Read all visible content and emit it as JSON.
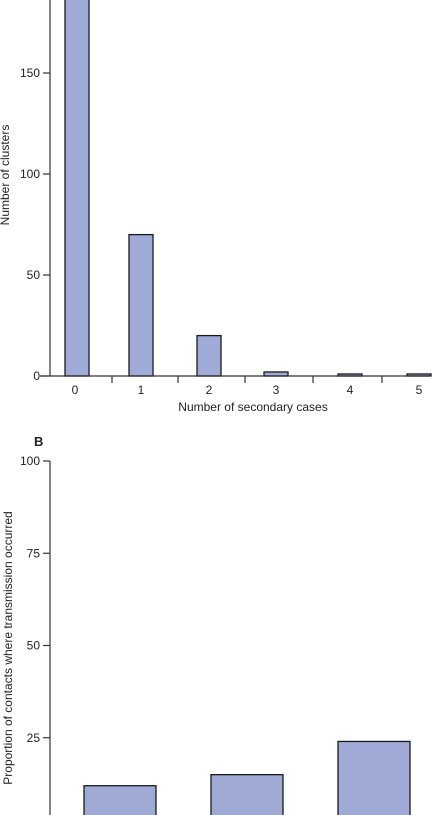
{
  "colors": {
    "bar_fill": "#9fabd6",
    "bar_stroke": "#1a1a1a",
    "axis": "#333333"
  },
  "chart_data": [
    {
      "type": "bar",
      "panel_label": "",
      "categories": [
        "0",
        "1",
        "2",
        "3",
        "4",
        "5"
      ],
      "values": [
        200,
        70,
        20,
        2,
        1,
        1
      ],
      "xlabel": "Number of secondary cases",
      "ylabel": "Number of clusters",
      "ylim": [
        0,
        200
      ],
      "yticks": [
        0,
        50,
        100,
        150
      ],
      "grid": false,
      "legend": "none"
    },
    {
      "type": "bar",
      "panel_label": "B",
      "categories": [
        "",
        "",
        ""
      ],
      "values": [
        12,
        15,
        24
      ],
      "xlabel": "",
      "ylabel": "Proportion of contacts where transmission occurred",
      "ylim": [
        0,
        100
      ],
      "yticks": [
        25,
        50,
        75,
        100
      ],
      "grid": false,
      "legend": "none"
    }
  ]
}
